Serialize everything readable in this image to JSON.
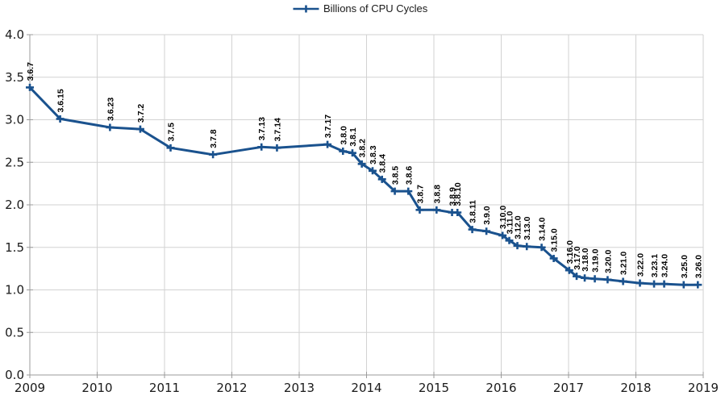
{
  "legend": {
    "position": "top",
    "entries": [
      "Billions of CPU Cycles"
    ]
  },
  "colors": {
    "series": "#1a528e",
    "grid": "#d2d2d2",
    "axis": "#9b9b9b",
    "text": "#1a1a1a",
    "background": "#ffffff"
  },
  "chart_data": {
    "type": "line",
    "title": "",
    "xlabel": "",
    "ylabel": "",
    "grid": true,
    "legend_position": "top-center",
    "x_axis": {
      "min": 2009,
      "max": 2019,
      "tick_values": [
        2009,
        2010,
        2011,
        2012,
        2013,
        2014,
        2015,
        2016,
        2017,
        2018,
        2019
      ],
      "tick_labels": [
        "2009",
        "2010",
        "2011",
        "2012",
        "2013",
        "2014",
        "2015",
        "2016",
        "2017",
        "2018",
        "2019"
      ]
    },
    "y_axis": {
      "min": 0.0,
      "max": 4.0,
      "tick_values": [
        0.0,
        0.5,
        1.0,
        1.5,
        2.0,
        2.5,
        3.0,
        3.5,
        4.0
      ],
      "tick_labels": [
        "0.0",
        "0.5",
        "1.0",
        "1.5",
        "2.0",
        "2.5",
        "3.0",
        "3.5",
        "4.0"
      ]
    },
    "series": [
      {
        "name": "Billions of CPU Cycles",
        "color": "#1a528e",
        "marker": "plus",
        "points": [
          {
            "label": "3.6.7",
            "x": 2009.0,
            "y": 3.38
          },
          {
            "label": "3.6.15",
            "x": 2009.45,
            "y": 3.01
          },
          {
            "label": "3.6.23",
            "x": 2010.19,
            "y": 2.91
          },
          {
            "label": "3.7.2",
            "x": 2010.64,
            "y": 2.89
          },
          {
            "label": "3.7.5",
            "x": 2011.09,
            "y": 2.67
          },
          {
            "label": "3.7.8",
            "x": 2011.72,
            "y": 2.59
          },
          {
            "label": "3.7.13",
            "x": 2012.44,
            "y": 2.68
          },
          {
            "label": "3.7.14",
            "x": 2012.67,
            "y": 2.67
          },
          {
            "label": "3.7.17",
            "x": 2013.42,
            "y": 2.71
          },
          {
            "label": "3.8.0",
            "x": 2013.65,
            "y": 2.63
          },
          {
            "label": "3.8.1",
            "x": 2013.79,
            "y": 2.61
          },
          {
            "label": "3.8.2",
            "x": 2013.93,
            "y": 2.48
          },
          {
            "label": "3.8.3",
            "x": 2014.09,
            "y": 2.4
          },
          {
            "label": "3.8.4",
            "x": 2014.23,
            "y": 2.3
          },
          {
            "label": "3.8.5",
            "x": 2014.42,
            "y": 2.16
          },
          {
            "label": "3.8.6",
            "x": 2014.62,
            "y": 2.16
          },
          {
            "label": "3.8.7",
            "x": 2014.79,
            "y": 1.94
          },
          {
            "label": "3.8.8",
            "x": 2015.04,
            "y": 1.94
          },
          {
            "label": "3.8.9",
            "x": 2015.27,
            "y": 1.91
          },
          {
            "label": "3.8.10",
            "x": 2015.35,
            "y": 1.91
          },
          {
            "label": "3.8.11",
            "x": 2015.57,
            "y": 1.71
          },
          {
            "label": "3.9.0",
            "x": 2015.78,
            "y": 1.69
          },
          {
            "label": "3.10.0",
            "x": 2016.02,
            "y": 1.64
          },
          {
            "label": "3.11.0",
            "x": 2016.12,
            "y": 1.58
          },
          {
            "label": "3.12.0",
            "x": 2016.24,
            "y": 1.52
          },
          {
            "label": "3.13.0",
            "x": 2016.38,
            "y": 1.51
          },
          {
            "label": "3.14.0",
            "x": 2016.6,
            "y": 1.5
          },
          {
            "label": "3.15.0",
            "x": 2016.78,
            "y": 1.37
          },
          {
            "label": "3.16.0",
            "x": 2017.01,
            "y": 1.23
          },
          {
            "label": "3.17.0",
            "x": 2017.12,
            "y": 1.16
          },
          {
            "label": "3.18.0",
            "x": 2017.24,
            "y": 1.14
          },
          {
            "label": "3.19.0",
            "x": 2017.39,
            "y": 1.13
          },
          {
            "label": "3.20.0",
            "x": 2017.58,
            "y": 1.12
          },
          {
            "label": "3.21.0",
            "x": 2017.81,
            "y": 1.1
          },
          {
            "label": "3.22.0",
            "x": 2018.06,
            "y": 1.08
          },
          {
            "label": "3.23.1",
            "x": 2018.27,
            "y": 1.07
          },
          {
            "label": "3.24.0",
            "x": 2018.42,
            "y": 1.07
          },
          {
            "label": "3.25.0",
            "x": 2018.71,
            "y": 1.06
          },
          {
            "label": "3.26.0",
            "x": 2018.92,
            "y": 1.06
          }
        ]
      }
    ]
  }
}
